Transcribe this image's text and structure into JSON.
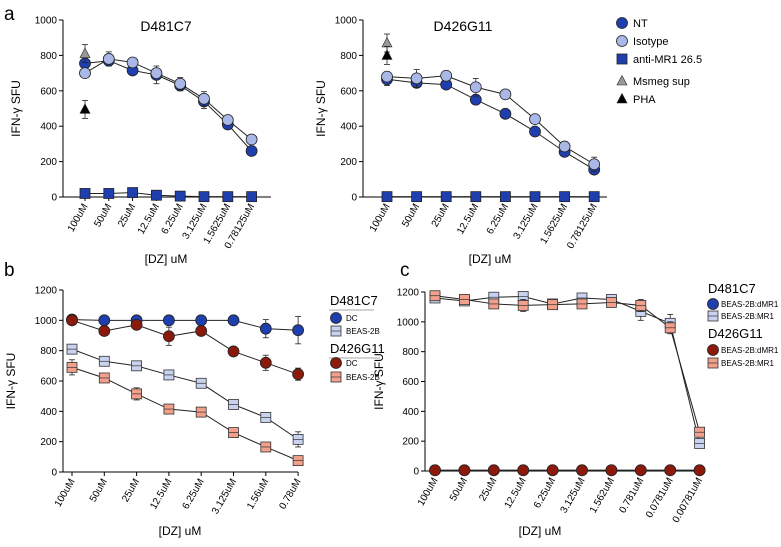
{
  "colors": {
    "nt": "#1f3fae",
    "isotype": "#a9b8e6",
    "darkred": "#8b1a0c",
    "salmon": "#f2a08c",
    "lightblue": "#c9d3f0",
    "black": "#000000",
    "gray": "#999999"
  },
  "chart_data": [
    {
      "type": "line",
      "panel_label": "a",
      "title": "D481C7",
      "ylabel": "IFN-γ SFU",
      "xlabel": "[DZ] uM",
      "ylim": [
        0,
        1000
      ],
      "yticks": [
        0,
        200,
        400,
        600,
        800,
        1000
      ],
      "categories": [
        "100uM",
        "50uM",
        "25uM",
        "12.5uM",
        "6.25uM",
        "3.125uM",
        "1.5625uM",
        "0.78125uM"
      ],
      "series": [
        {
          "name": "NT",
          "values": [
            755,
            770,
            715,
            690,
            630,
            540,
            410,
            260
          ],
          "errors": [
            30,
            25,
            20,
            50,
            30,
            40,
            15,
            10
          ]
        },
        {
          "name": "Isotype",
          "values": [
            700,
            780,
            760,
            700,
            640,
            555,
            435,
            325
          ],
          "errors": [
            25,
            40,
            20,
            25,
            35,
            40,
            10,
            10
          ]
        },
        {
          "name": "anti-MR1 26.5",
          "values": [
            20,
            20,
            25,
            10,
            5,
            2,
            2,
            2
          ],
          "errors": [
            5,
            5,
            5,
            5,
            2,
            2,
            2,
            2
          ]
        }
      ],
      "points": [
        {
          "name": "Msmeg sup",
          "value": 810
        },
        {
          "name": "PHA",
          "value": 495
        }
      ]
    },
    {
      "type": "line",
      "panel_label": "",
      "title": "D426G11",
      "ylabel": "IFN-γ SFU",
      "xlabel": "[DZ] uM",
      "ylim": [
        0,
        1000
      ],
      "yticks": [
        0,
        200,
        400,
        600,
        800,
        1000
      ],
      "categories": [
        "100uM",
        "50uM",
        "25uM",
        "12.5uM",
        "6.25uM",
        "3.125uM",
        "1.5625uM",
        "0.78125uM"
      ],
      "series": [
        {
          "name": "NT",
          "values": [
            665,
            645,
            635,
            550,
            470,
            370,
            255,
            155
          ],
          "errors": [
            35,
            25,
            20,
            15,
            10,
            10,
            15,
            15
          ]
        },
        {
          "name": "Isotype",
          "values": [
            680,
            670,
            685,
            620,
            580,
            440,
            285,
            185
          ],
          "errors": [
            20,
            50,
            10,
            50,
            10,
            10,
            15,
            40
          ]
        },
        {
          "name": "anti-MR1 26.5",
          "values": [
            2,
            2,
            2,
            2,
            2,
            2,
            2,
            2
          ],
          "errors": [
            1,
            1,
            1,
            1,
            1,
            1,
            1,
            1
          ]
        }
      ],
      "points": [
        {
          "name": "Msmeg sup",
          "value": 870
        },
        {
          "name": "PHA",
          "value": 800
        }
      ],
      "legend": {
        "items": [
          "NT",
          "Isotype",
          "anti-MR1 26.5",
          "Msmeg sup",
          "PHA"
        ]
      }
    },
    {
      "type": "line",
      "panel_label": "b",
      "title": "",
      "ylabel": "IFN-γ SFU",
      "xlabel": "[DZ] uM",
      "ylim": [
        0,
        1200
      ],
      "yticks": [
        0,
        200,
        400,
        600,
        800,
        1000,
        1200
      ],
      "categories": [
        "100uM",
        "50uM",
        "25uM",
        "12.5uM",
        "6.25uM",
        "3.125uM",
        "1.56uM",
        "0.78uM"
      ],
      "series": [
        {
          "group": "D481C7",
          "name": "DC",
          "values": [
            1005,
            1000,
            1000,
            1000,
            1000,
            1000,
            945,
            935
          ],
          "errors": [
            10,
            5,
            5,
            5,
            5,
            5,
            60,
            90
          ]
        },
        {
          "group": "D481C7",
          "name": "BEAS-2B",
          "values": [
            810,
            730,
            700,
            640,
            585,
            445,
            360,
            215
          ],
          "errors": [
            30,
            30,
            20,
            20,
            30,
            15,
            20,
            50
          ]
        },
        {
          "group": "D426G11",
          "name": "DC",
          "values": [
            1000,
            930,
            970,
            895,
            930,
            795,
            720,
            645
          ],
          "errors": [
            15,
            25,
            30,
            60,
            25,
            15,
            50,
            40
          ]
        },
        {
          "group": "D426G11",
          "name": "BEAS-2B",
          "values": [
            690,
            620,
            515,
            415,
            395,
            260,
            165,
            75
          ],
          "errors": [
            50,
            20,
            40,
            15,
            15,
            20,
            15,
            10
          ]
        }
      ],
      "legend": {
        "groups": [
          "D481C7",
          "D426G11"
        ]
      }
    },
    {
      "type": "line",
      "panel_label": "c",
      "title": "",
      "ylabel": "IFN-γ SFU",
      "xlabel": "[DZ] uM",
      "ylim": [
        0,
        1200
      ],
      "yticks": [
        0,
        200,
        400,
        600,
        800,
        1000,
        1200
      ],
      "categories": [
        "100uM",
        "50uM",
        "25uM",
        "12.5uM",
        "6.25uM",
        "3.125uM",
        "1.562uM",
        "0.781uM",
        "0.0781uM",
        "0.00781uM"
      ],
      "series": [
        {
          "group": "D481C7",
          "name": "BEAS-2B:dMR1",
          "values": [
            5,
            5,
            5,
            5,
            5,
            5,
            5,
            5,
            5,
            5
          ],
          "errors": [
            2,
            2,
            2,
            2,
            2,
            2,
            2,
            2,
            2,
            2
          ]
        },
        {
          "group": "D481C7",
          "name": "BEAS-2B:MR1",
          "values": [
            1160,
            1140,
            1165,
            1170,
            1120,
            1160,
            1150,
            1070,
            990,
            185
          ],
          "errors": [
            15,
            30,
            20,
            30,
            20,
            15,
            15,
            60,
            60,
            20
          ]
        },
        {
          "group": "D426G11",
          "name": "BEAS-2B:dMR1",
          "values": [
            5,
            5,
            5,
            5,
            5,
            5,
            5,
            5,
            5,
            5
          ],
          "errors": [
            2,
            2,
            2,
            2,
            2,
            2,
            2,
            2,
            2,
            2
          ]
        },
        {
          "group": "D426G11",
          "name": "BEAS-2B:MR1",
          "values": [
            1175,
            1150,
            1120,
            1110,
            1115,
            1120,
            1130,
            1110,
            960,
            260
          ],
          "errors": [
            20,
            20,
            20,
            40,
            10,
            25,
            20,
            40,
            40,
            30
          ]
        }
      ],
      "legend": {
        "groups": [
          "D481C7",
          "D426G11"
        ]
      }
    }
  ]
}
